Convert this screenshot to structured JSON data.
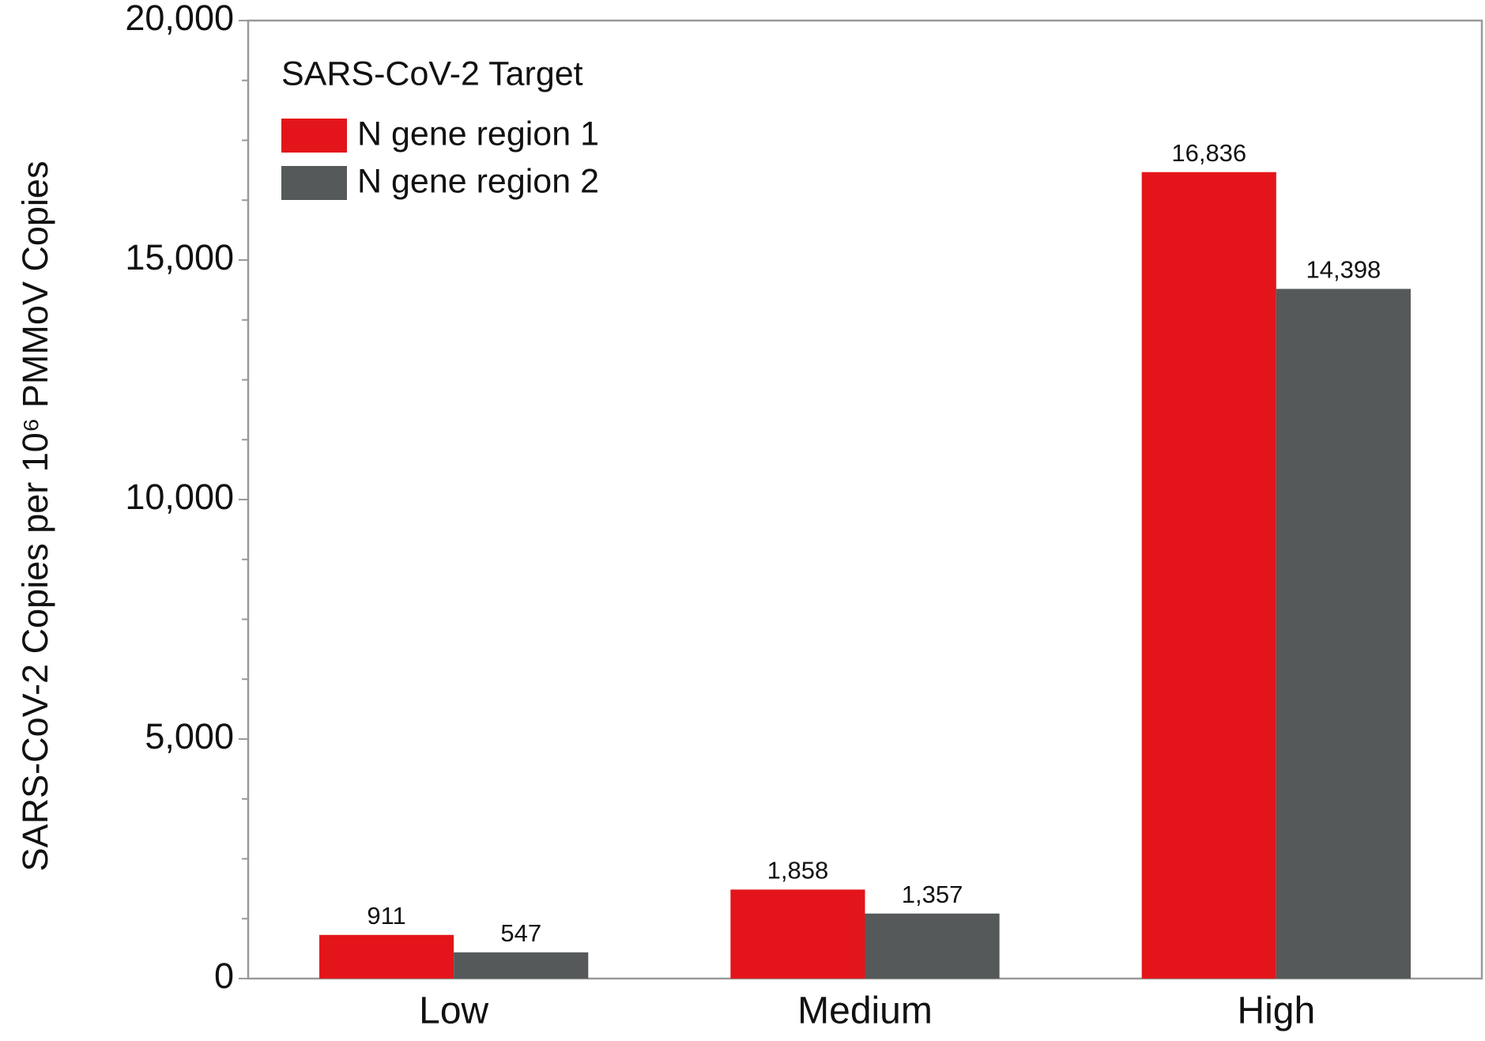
{
  "chart_data": {
    "type": "bar",
    "ylabel": "SARS-CoV-2 Copies per 10⁶ PMMoV Copies",
    "legend_title": "SARS-CoV-2 Target",
    "categories": [
      "Low",
      "Medium",
      "High"
    ],
    "series": [
      {
        "name": "N gene region 1",
        "color": "#e3151a",
        "values": [
          911,
          1858,
          16836
        ],
        "value_labels": [
          "911",
          "1,858",
          "16,836"
        ]
      },
      {
        "name": "N gene region 2",
        "color": "#55595a",
        "values": [
          547,
          1357,
          14398
        ],
        "value_labels": [
          "547",
          "1,357",
          "14,398"
        ]
      }
    ],
    "ylim": [
      0,
      20000
    ],
    "yticks": [
      0,
      {
        "value": 5000,
        "label": "5,000"
      },
      {
        "value": 10000,
        "label": "10,000"
      },
      {
        "value": 15000,
        "label": "15,000"
      },
      {
        "value": 20000,
        "label": "20,000"
      }
    ],
    "yminorticks": [
      1250,
      2500,
      3750,
      6250,
      7500,
      8750,
      11250,
      12500,
      13750,
      16250,
      17500,
      18750
    ],
    "legend": "upper left",
    "grid": false
  }
}
